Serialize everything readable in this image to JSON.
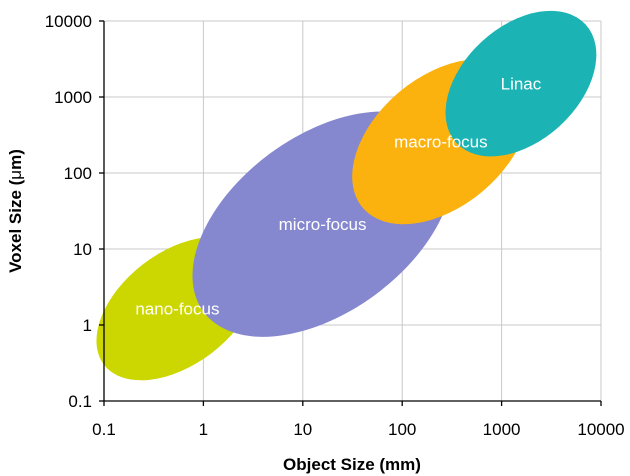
{
  "chart_data": {
    "type": "scatter",
    "title": "",
    "xlabel": "Object Size (mm)",
    "ylabel_prefix": "Voxel Size (",
    "ylabel_mu": "μ",
    "ylabel_suffix": "m)",
    "x_scale": "log",
    "y_scale": "log",
    "xlim": [
      0.1,
      10000
    ],
    "ylim": [
      0.1,
      10000
    ],
    "x_ticks": [
      0.1,
      1,
      10,
      100,
      1000,
      10000
    ],
    "x_tick_labels": [
      "0.1",
      "1",
      "10",
      "100",
      "1000",
      "10000"
    ],
    "y_ticks": [
      0.1,
      1,
      10,
      100,
      1000,
      10000
    ],
    "y_tick_labels": [
      "0.1",
      "1",
      "10",
      "100",
      "1000",
      "10000"
    ],
    "grid": true,
    "legend": "none",
    "regions": [
      {
        "name": "nano-focus",
        "color": "#ccd600",
        "x_range": [
          0.1,
          3.0
        ],
        "y_range": [
          0.3,
          9.0
        ]
      },
      {
        "name": "micro-focus",
        "color": "#8587cf",
        "x_range": [
          1.0,
          250
        ],
        "y_range": [
          1.5,
          300
        ]
      },
      {
        "name": "macro-focus",
        "color": "#fbb20f",
        "x_range": [
          40,
          1500
        ],
        "y_range": [
          35,
          1900
        ]
      },
      {
        "name": "Linac",
        "color": "#1bb3b3",
        "x_range": [
          350,
          7000
        ],
        "y_range": [
          250,
          9000
        ]
      }
    ]
  }
}
